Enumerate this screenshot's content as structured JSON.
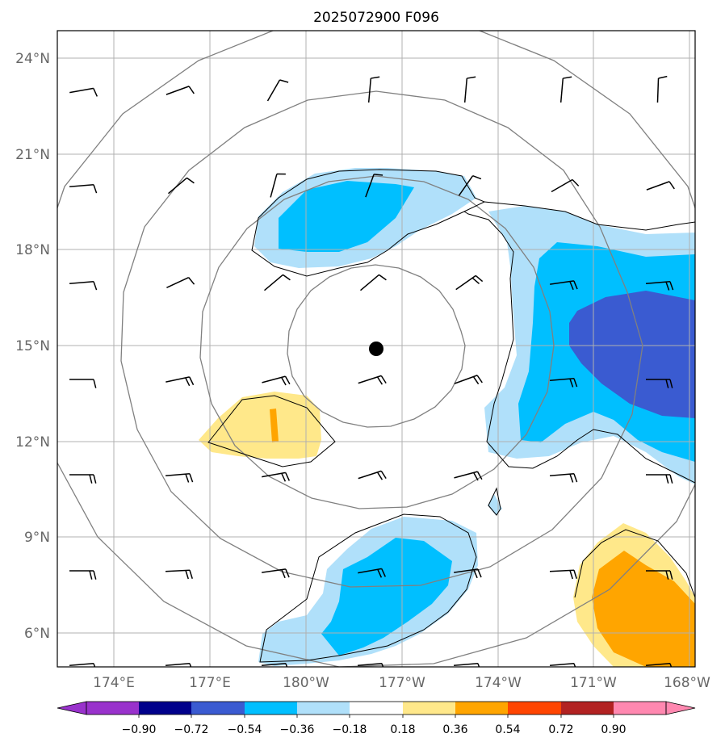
{
  "title": "2025072900 F096",
  "lat_labels": [
    "24°N",
    "21°N",
    "18°N",
    "15°N",
    "12°N",
    "9°N",
    "6°N"
  ],
  "lon_labels": [
    "174°E",
    "177°E",
    "180°W",
    "177°W",
    "174°W",
    "171°W",
    "168°W"
  ],
  "colorbar": {
    "tick_labels": [
      "−0.90",
      "−0.72",
      "−0.54",
      "−0.36",
      "−0.18",
      "0.18",
      "0.36",
      "0.54",
      "0.72",
      "0.90"
    ],
    "colors": [
      "#9932cc",
      "#00008b",
      "#3a5bd1",
      "#00bfff",
      "#b0e0fa",
      "#ffffff",
      "#ffe88a",
      "#ffa500",
      "#ff4500",
      "#b22222",
      "#ff88b0"
    ]
  },
  "storm_center_marker": "filled-black-dot",
  "wind_symbol": "wind-barb",
  "colors": {
    "range_ring": "#808080",
    "gridline": "#b0b0b0",
    "coastline": "#000000",
    "label_gray": "#666666"
  }
}
